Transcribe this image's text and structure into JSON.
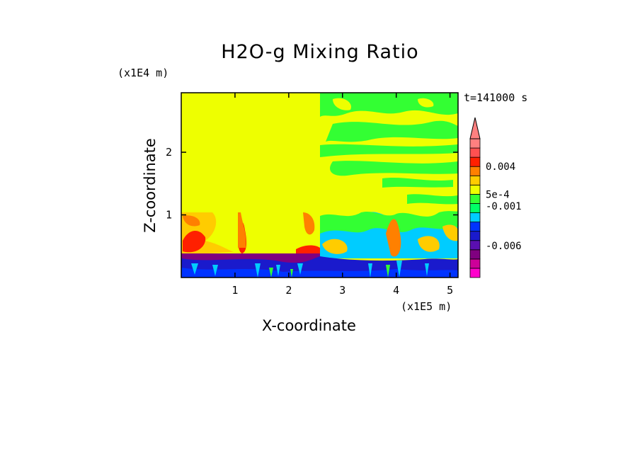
{
  "chart_data": {
    "type": "heatmap",
    "title": "H2O-g Mixing Ratio",
    "xlabel": "X-coordinate",
    "ylabel": "Z-coordinate",
    "x_unit_label": "(x1E5 m)",
    "y_unit_label": "(x1E4 m)",
    "time_label": "t=141000 s",
    "xlim": [
      0,
      5.15
    ],
    "ylim": [
      0,
      2.95
    ],
    "x_ticks": [
      "1",
      "2",
      "3",
      "4",
      "5"
    ],
    "y_ticks": [
      "1",
      "2"
    ],
    "colorbar": {
      "labels": [
        "0.004",
        "5e-4",
        "-0.001",
        "-0.006"
      ],
      "label_values": [
        0.004,
        0.0005,
        -0.001,
        -0.006
      ],
      "range": [
        -0.01,
        0.0075
      ],
      "colors": [
        "#ff00cc",
        "#cc0099",
        "#800080",
        "#5a0fb0",
        "#1a1acc",
        "#0033ff",
        "#00ccff",
        "#00ff66",
        "#33ff33",
        "#eeff00",
        "#ffcc00",
        "#ff8000",
        "#ff2000",
        "#ff5050",
        "#ff8080"
      ]
    },
    "regions": [
      {
        "x0": 0,
        "x1": 2.55,
        "z0": 0.4,
        "z1": 2.95,
        "color": "#eeff00"
      },
      {
        "x0": 2.55,
        "x1": 5.15,
        "z0": 0.35,
        "z1": 2.95,
        "color": "#eeff00"
      },
      {
        "x0": 0,
        "x1": 5.15,
        "z0": 0,
        "z1": 0.4,
        "color": "#1a1acc"
      }
    ]
  }
}
